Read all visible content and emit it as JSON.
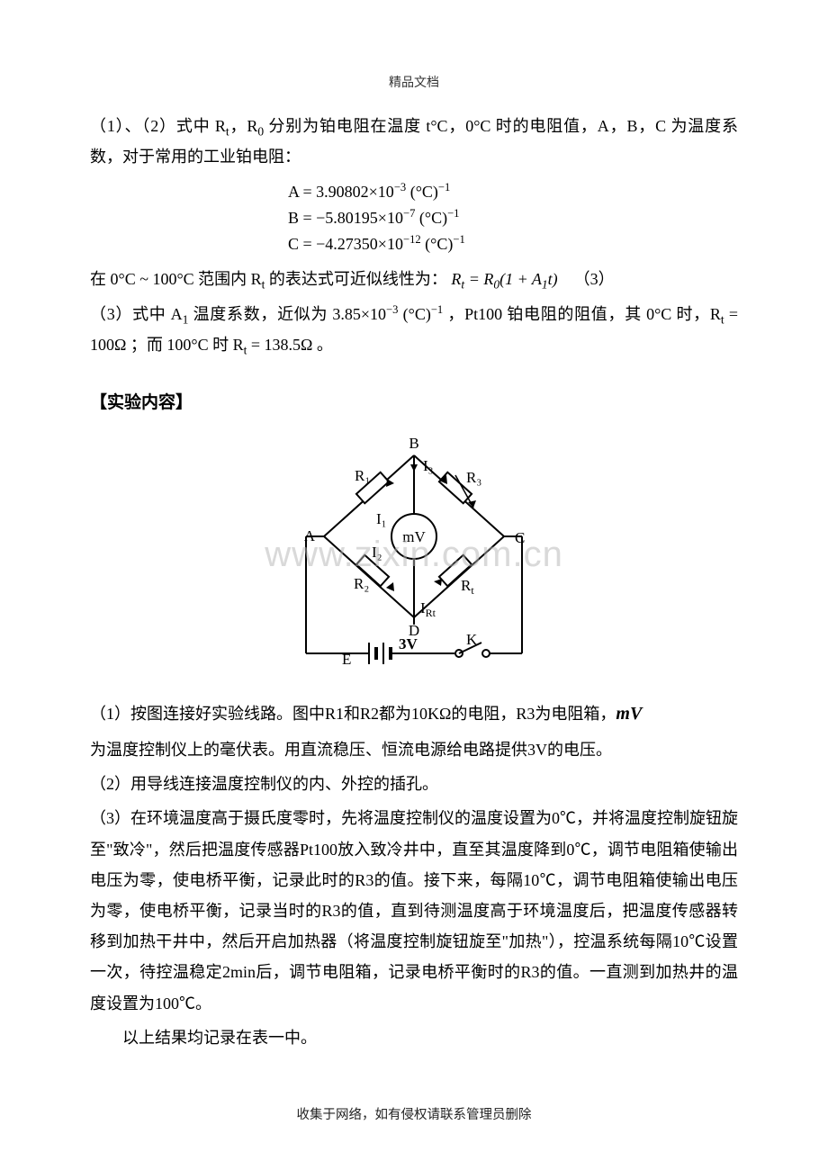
{
  "header": "精品文档",
  "para1": "（1）、（2）式中 R<sub>t</sub>，R<sub>0</sub> 分别为铂电阻在温度 t°C，0°C 时的电阻值，A，B，C 为温度系数，对于常用的工业铂电阻：",
  "eqA": "A = 3.90802×10<sup>−3</sup> (°C)<sup>−1</sup>",
  "eqB": "B = −5.80195×10<sup>−7</sup> (°C)<sup>−1</sup>",
  "eqC": "C = −4.27350×10<sup>−12</sup> (°C)<sup>−1</sup>",
  "para2_a": "在 0°C ~ 100°C 范围内 R<sub>t</sub> 的表达式可近似线性为： ",
  "para2_eq": "R<sub>t</sub> = R<sub>0</sub>(1 + A<sub>1</sub>t)",
  "para2_num": "（3）",
  "para3": "（3）式中 A<sub>1</sub> 温度系数，近似为 3.85×10<sup>−3</sup> (°C)<sup>−1</sup> ，Pt100 铂电阻的阻值，其 0°C 时，R<sub>t</sub> = 100Ω ；而 100°C 时 R<sub>t</sub> = 138.5Ω 。",
  "section_title": "【实验内容】",
  "diagram": {
    "labels": {
      "top": "B",
      "left": "A",
      "right": "C",
      "bottom": "D"
    },
    "branches": {
      "R1": "R₁",
      "R2": "R₂",
      "R3": "R₃",
      "Rt": "R<sub>t</sub>"
    },
    "currents": {
      "I1": "I₁",
      "I2": "I₂",
      "I3": "I₃",
      "IRt": "I<sub>Rt</sub>"
    },
    "meter": "mV",
    "source": "E",
    "voltage": "3V",
    "switch": "K"
  },
  "watermark": "www.zixin.com.cn",
  "content1_a": "（1）按图连接好实验线路。图中R1和R2都为10KΩ的电阻，R3为电阻箱，",
  "content1_mv": "mV",
  "content2": "为温度控制仪上的毫伏表。用直流稳压、恒流电源给电路提供3V的电压。",
  "content3": "（2）用导线连接温度控制仪的内、外控的插孔。",
  "content4": "（3）在环境温度高于摄氏度零时，先将温度控制仪的温度设置为0℃，并将温度控制旋钮旋至\"致冷\"，然后把温度传感器Pt100放入致冷井中，直至其温度降到0℃，调节电阻箱使输出电压为零，使电桥平衡，记录此时的R3的值。接下来，每隔10℃，调节电阻箱使输出电压为零，使电桥平衡，记录当时的R3的值，直到待测温度高于环境温度后，把温度传感器转移到加热干井中，然后开启加热器（将温度控制旋钮旋至\"加热\"），控温系统每隔10℃设置一次，待控温稳定2min后，调节电阻箱，记录电桥平衡时的R3的值。一直测到加热井的温度设置为100℃。",
  "content5": "以上结果均记录在表一中。",
  "footer": "收集于网络，如有侵权请联系管理员删除"
}
